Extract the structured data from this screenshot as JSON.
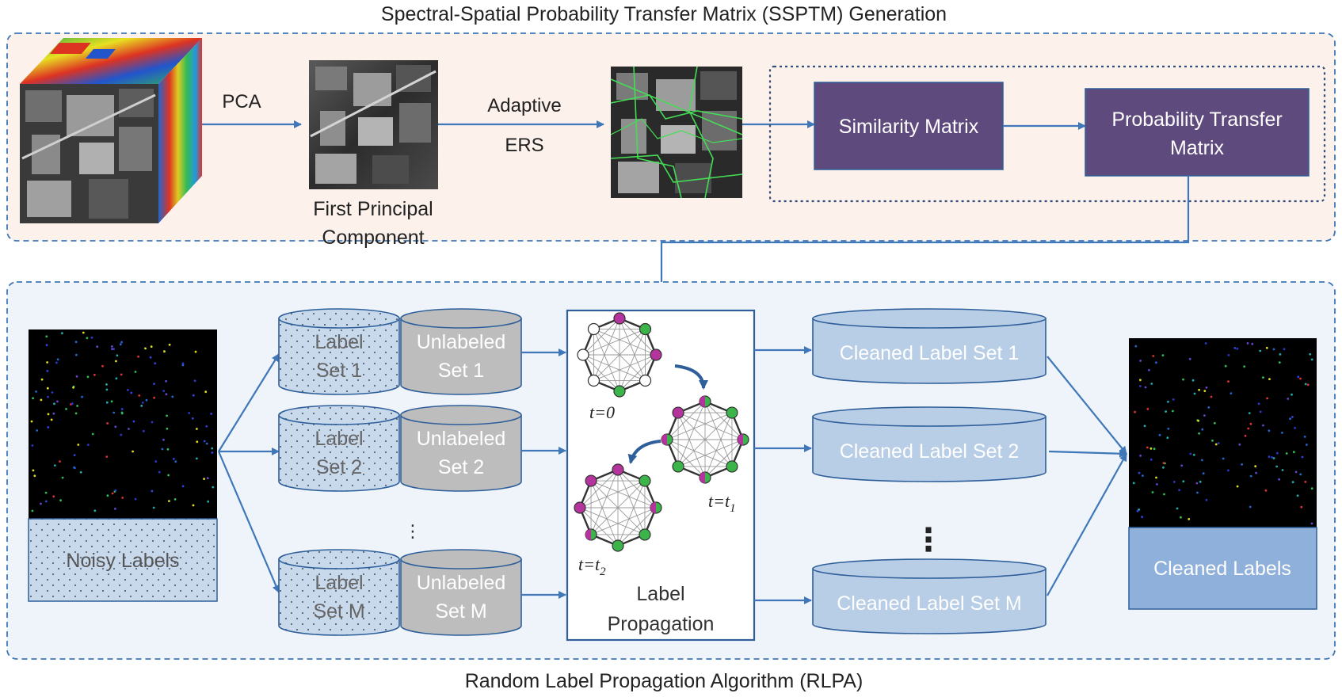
{
  "top_section": {
    "title": "Spectral-Spatial Probability Transfer Matrix (SSPTM) Generation",
    "pca_label": "PCA",
    "first_pc_label_line1": "First Principal",
    "first_pc_label_line2": "Component",
    "adaptive_label": "Adaptive",
    "ers_label": "ERS",
    "similarity_matrix": "Similarity Matrix",
    "ptm_line1": "Probability Transfer",
    "ptm_line2": "Matrix"
  },
  "bottom_section": {
    "title": "Random Label Propagation Algorithm (RLPA)",
    "noisy_labels": "Noisy Labels",
    "sets": [
      {
        "label_line1": "Label",
        "label_line2": "Set 1",
        "unlabeled_line1": "Unlabeled",
        "unlabeled_line2": "Set 1",
        "cleaned": "Cleaned Label Set 1"
      },
      {
        "label_line1": "Label",
        "label_line2": "Set 2",
        "unlabeled_line1": "Unlabeled",
        "unlabeled_line2": "Set 2",
        "cleaned": "Cleaned Label Set 2"
      },
      {
        "label_line1": "Label",
        "label_line2": "Set M",
        "unlabeled_line1": "Unlabeled",
        "unlabeled_line2": "Set M",
        "cleaned": "Cleaned Label Set M"
      }
    ],
    "ellipsis_small": "⋮",
    "ellipsis_large": "⋮",
    "lp_line1": "Label",
    "lp_line2": "Propagation",
    "t0": "t=0",
    "t1_base": "t=t",
    "t1_sub": "1",
    "t2_base": "t=t",
    "t2_sub": "2",
    "cleaned_labels": "Cleaned Labels"
  },
  "colors": {
    "top_bg": "#fdf1ec",
    "bottom_bg": "#eef4fa",
    "border_blue": "#3f77b8",
    "arrow_blue": "#3f77b8",
    "purple_box": "#5e4a7c",
    "cylinder_blue": "#b8cde6",
    "cylinder_gray": "#bdbdbd",
    "cleaned_box": "#8fb0da",
    "node_magenta": "#b5339c",
    "node_green": "#3bb54a"
  }
}
